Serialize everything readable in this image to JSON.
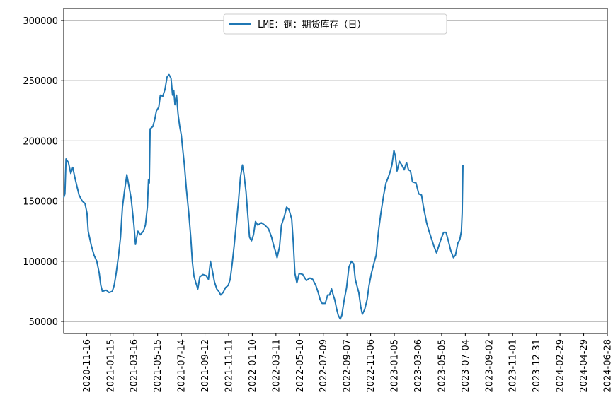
{
  "chart_data": {
    "type": "line",
    "legend": {
      "position": "top-center",
      "entries": [
        "LME：铜：期货库存（日）"
      ]
    },
    "grid": {
      "y": true,
      "x": false
    },
    "ylim": [
      40000,
      310000
    ],
    "yticks": [
      50000,
      100000,
      150000,
      200000,
      250000,
      300000
    ],
    "xlim": [
      "2020-09-19",
      "2024-06-28"
    ],
    "xticks": [
      "2020-11-16",
      "2021-01-15",
      "2021-03-16",
      "2021-05-15",
      "2021-07-14",
      "2021-09-12",
      "2021-11-11",
      "2022-01-10",
      "2022-03-11",
      "2022-05-10",
      "2022-07-09",
      "2022-09-07",
      "2022-11-06",
      "2023-01-05",
      "2023-03-06",
      "2023-05-05",
      "2023-07-04",
      "2023-09-02",
      "2023-11-01",
      "2023-12-31",
      "2024-02-29",
      "2024-04-29",
      "2024-06-28"
    ],
    "series": [
      {
        "name": "LME：铜：期货库存（日）",
        "color": "#1f77b4",
        "points": [
          [
            "2020-09-19",
            153000
          ],
          [
            "2020-09-22",
            156000
          ],
          [
            "2020-09-25",
            185000
          ],
          [
            "2020-10-01",
            182000
          ],
          [
            "2020-10-07",
            173000
          ],
          [
            "2020-10-12",
            178000
          ],
          [
            "2020-10-17",
            170000
          ],
          [
            "2020-10-22",
            163000
          ],
          [
            "2020-10-28",
            155000
          ],
          [
            "2020-11-05",
            150000
          ],
          [
            "2020-11-12",
            148000
          ],
          [
            "2020-11-17",
            140000
          ],
          [
            "2020-11-20",
            125000
          ],
          [
            "2020-11-28",
            113000
          ],
          [
            "2020-12-05",
            105000
          ],
          [
            "2020-12-12",
            100000
          ],
          [
            "2020-12-18",
            90000
          ],
          [
            "2020-12-22",
            80000
          ],
          [
            "2020-12-26",
            75000
          ],
          [
            "2021-01-05",
            76000
          ],
          [
            "2021-01-12",
            74000
          ],
          [
            "2021-01-20",
            75000
          ],
          [
            "2021-01-25",
            80000
          ],
          [
            "2021-01-30",
            90000
          ],
          [
            "2021-02-05",
            105000
          ],
          [
            "2021-02-10",
            120000
          ],
          [
            "2021-02-15",
            145000
          ],
          [
            "2021-02-20",
            158000
          ],
          [
            "2021-02-26",
            172000
          ],
          [
            "2021-03-03",
            163000
          ],
          [
            "2021-03-09",
            152000
          ],
          [
            "2021-03-16",
            130000
          ],
          [
            "2021-03-20",
            114000
          ],
          [
            "2021-03-26",
            125000
          ],
          [
            "2021-04-01",
            122000
          ],
          [
            "2021-04-09",
            125000
          ],
          [
            "2021-04-14",
            130000
          ],
          [
            "2021-04-19",
            145000
          ],
          [
            "2021-04-22",
            168000
          ],
          [
            "2021-04-24",
            165000
          ],
          [
            "2021-04-26",
            210000
          ],
          [
            "2021-05-03",
            212000
          ],
          [
            "2021-05-08",
            218000
          ],
          [
            "2021-05-12",
            225000
          ],
          [
            "2021-05-18",
            228000
          ],
          [
            "2021-05-22",
            238000
          ],
          [
            "2021-05-28",
            237000
          ],
          [
            "2021-06-03",
            243000
          ],
          [
            "2021-06-08",
            253000
          ],
          [
            "2021-06-13",
            255000
          ],
          [
            "2021-06-18",
            252000
          ],
          [
            "2021-06-22",
            238000
          ],
          [
            "2021-06-25",
            242000
          ],
          [
            "2021-06-28",
            230000
          ],
          [
            "2021-07-02",
            238000
          ],
          [
            "2021-07-06",
            222000
          ],
          [
            "2021-07-10",
            212000
          ],
          [
            "2021-07-14",
            205000
          ],
          [
            "2021-07-17",
            195000
          ],
          [
            "2021-07-22",
            180000
          ],
          [
            "2021-07-27",
            160000
          ],
          [
            "2021-08-02",
            140000
          ],
          [
            "2021-08-07",
            120000
          ],
          [
            "2021-08-11",
            100000
          ],
          [
            "2021-08-15",
            88000
          ],
          [
            "2021-08-20",
            82000
          ],
          [
            "2021-08-25",
            77000
          ],
          [
            "2021-08-30",
            87000
          ],
          [
            "2021-09-07",
            89000
          ],
          [
            "2021-09-15",
            88000
          ],
          [
            "2021-09-21",
            85000
          ],
          [
            "2021-09-26",
            100000
          ],
          [
            "2021-10-01",
            92000
          ],
          [
            "2021-10-06",
            83000
          ],
          [
            "2021-10-12",
            77000
          ],
          [
            "2021-10-17",
            75000
          ],
          [
            "2021-10-22",
            72000
          ],
          [
            "2021-10-28",
            74000
          ],
          [
            "2021-11-03",
            78000
          ],
          [
            "2021-11-10",
            80000
          ],
          [
            "2021-11-15",
            85000
          ],
          [
            "2021-11-20",
            98000
          ],
          [
            "2021-11-25",
            113000
          ],
          [
            "2021-11-30",
            130000
          ],
          [
            "2021-12-06",
            150000
          ],
          [
            "2021-12-11",
            170000
          ],
          [
            "2021-12-16",
            180000
          ],
          [
            "2021-12-20",
            172000
          ],
          [
            "2021-12-25",
            158000
          ],
          [
            "2021-12-28",
            145000
          ],
          [
            "2022-01-03",
            120000
          ],
          [
            "2022-01-08",
            117000
          ],
          [
            "2022-01-13",
            122000
          ],
          [
            "2022-01-18",
            133000
          ],
          [
            "2022-01-24",
            130000
          ],
          [
            "2022-02-02",
            132000
          ],
          [
            "2022-02-11",
            130000
          ],
          [
            "2022-02-20",
            127000
          ],
          [
            "2022-02-28",
            120000
          ],
          [
            "2022-03-06",
            112000
          ],
          [
            "2022-03-10",
            108000
          ],
          [
            "2022-03-14",
            103000
          ],
          [
            "2022-03-20",
            112000
          ],
          [
            "2022-03-25",
            130000
          ],
          [
            "2022-04-02",
            138000
          ],
          [
            "2022-04-07",
            145000
          ],
          [
            "2022-04-13",
            143000
          ],
          [
            "2022-04-20",
            135000
          ],
          [
            "2022-04-24",
            115000
          ],
          [
            "2022-04-28",
            90000
          ],
          [
            "2022-05-03",
            82000
          ],
          [
            "2022-05-09",
            90000
          ],
          [
            "2022-05-18",
            89000
          ],
          [
            "2022-05-27",
            84000
          ],
          [
            "2022-06-05",
            86000
          ],
          [
            "2022-06-12",
            85000
          ],
          [
            "2022-06-20",
            80000
          ],
          [
            "2022-06-26",
            74000
          ],
          [
            "2022-07-01",
            68000
          ],
          [
            "2022-07-06",
            65000
          ],
          [
            "2022-07-14",
            65000
          ],
          [
            "2022-07-20",
            72000
          ],
          [
            "2022-07-25",
            72000
          ],
          [
            "2022-07-30",
            77000
          ],
          [
            "2022-08-03",
            72000
          ],
          [
            "2022-08-07",
            68000
          ],
          [
            "2022-08-12",
            60000
          ],
          [
            "2022-08-16",
            55000
          ],
          [
            "2022-08-21",
            52000
          ],
          [
            "2022-08-25",
            55000
          ],
          [
            "2022-08-31",
            68000
          ],
          [
            "2022-09-06",
            78000
          ],
          [
            "2022-09-12",
            95000
          ],
          [
            "2022-09-18",
            100000
          ],
          [
            "2022-09-24",
            98000
          ],
          [
            "2022-09-28",
            85000
          ],
          [
            "2022-10-02",
            80000
          ],
          [
            "2022-10-07",
            74000
          ],
          [
            "2022-10-12",
            62000
          ],
          [
            "2022-10-16",
            56000
          ],
          [
            "2022-10-22",
            60000
          ],
          [
            "2022-10-28",
            68000
          ],
          [
            "2022-11-02",
            80000
          ],
          [
            "2022-11-08",
            90000
          ],
          [
            "2022-11-14",
            98000
          ],
          [
            "2022-11-20",
            105000
          ],
          [
            "2022-11-26",
            125000
          ],
          [
            "2022-12-02",
            140000
          ],
          [
            "2022-12-09",
            155000
          ],
          [
            "2022-12-15",
            165000
          ],
          [
            "2022-12-21",
            170000
          ],
          [
            "2022-12-26",
            175000
          ],
          [
            "2022-12-30",
            180000
          ],
          [
            "2023-01-04",
            192000
          ],
          [
            "2023-01-08",
            187000
          ],
          [
            "2023-01-12",
            175000
          ],
          [
            "2023-01-18",
            183000
          ],
          [
            "2023-01-24",
            180000
          ],
          [
            "2023-01-30",
            176000
          ],
          [
            "2023-02-05",
            182000
          ],
          [
            "2023-02-10",
            176000
          ],
          [
            "2023-02-15",
            175000
          ],
          [
            "2023-02-20",
            166000
          ],
          [
            "2023-03-01",
            165000
          ],
          [
            "2023-03-08",
            156000
          ],
          [
            "2023-03-15",
            155000
          ],
          [
            "2023-03-20",
            145000
          ],
          [
            "2023-03-28",
            132000
          ],
          [
            "2023-04-03",
            125000
          ],
          [
            "2023-04-10",
            118000
          ],
          [
            "2023-04-16",
            112000
          ],
          [
            "2023-04-22",
            107000
          ],
          [
            "2023-04-27",
            112000
          ],
          [
            "2023-05-03",
            118000
          ],
          [
            "2023-05-10",
            124000
          ],
          [
            "2023-05-16",
            124000
          ],
          [
            "2023-05-22",
            117000
          ],
          [
            "2023-05-28",
            109000
          ],
          [
            "2023-06-04",
            103000
          ],
          [
            "2023-06-09",
            105000
          ],
          [
            "2023-06-15",
            115000
          ],
          [
            "2023-06-20",
            118000
          ],
          [
            "2023-06-24",
            125000
          ],
          [
            "2023-06-26",
            140000
          ],
          [
            "2023-06-28",
            180000
          ]
        ]
      }
    ]
  }
}
